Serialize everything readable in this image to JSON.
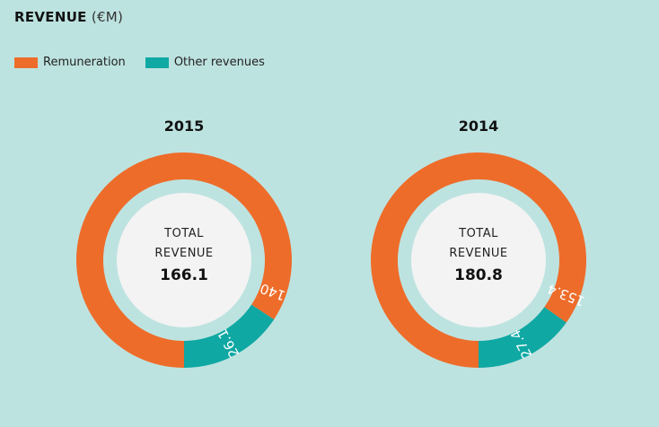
{
  "title": {
    "main": "REVENUE",
    "unit": "(€M)"
  },
  "legend": [
    {
      "label": "Remuneration",
      "color": "#ee6c2a"
    },
    {
      "label": "Other revenues",
      "color": "#0fa8a3"
    }
  ],
  "center_label_line1": "TOTAL",
  "center_label_line2": "REVENUE",
  "chart_data": [
    {
      "type": "pie",
      "title": "2015",
      "total": "166.1",
      "slices": [
        {
          "name": "Remuneration",
          "value": 140,
          "label": "140"
        },
        {
          "name": "Other revenues",
          "value": 26.1,
          "label": "26.1"
        }
      ]
    },
    {
      "type": "pie",
      "title": "2014",
      "total": "180.8",
      "slices": [
        {
          "name": "Remuneration",
          "value": 153.4,
          "label": "153.4"
        },
        {
          "name": "Other revenues",
          "value": 27.4,
          "label": "27.4"
        }
      ]
    }
  ]
}
